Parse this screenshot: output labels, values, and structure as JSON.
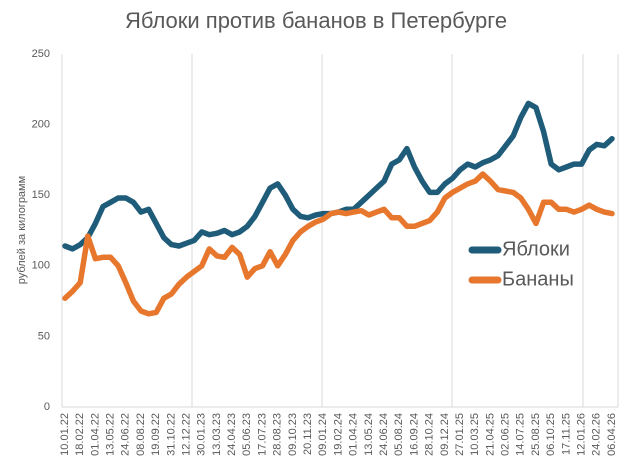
{
  "chart_data": {
    "type": "line",
    "title": "Яблоки против бананов в Петербурге",
    "y_label": "рублей за килограмм",
    "categories": [
      "10.01.22",
      null,
      "18.02.22",
      null,
      "01.04.22",
      null,
      "13.05.22",
      null,
      "24.06.22",
      null,
      "08.08.22",
      null,
      "19.09.22",
      null,
      "31.10.22",
      null,
      "12.12.22",
      null,
      "30.01.23",
      null,
      "13.03.23",
      null,
      "24.04.23",
      null,
      "05.06.23",
      null,
      "17.07.23",
      null,
      "28.08.23",
      null,
      "09.10.23",
      null,
      "20.11.23",
      null,
      "09.01.24",
      null,
      "19.02.24",
      null,
      "01.04.24",
      null,
      "13.05.24",
      null,
      "24.06.24",
      null,
      "05.08.24",
      null,
      "16.09.24",
      null,
      "28.10.24",
      null,
      "09.12.24",
      null,
      "27.01.25",
      null,
      "10.03.25",
      null,
      "21.04.25",
      null,
      "02.06.25",
      null,
      "14.07.25",
      null,
      "25.08.25",
      null,
      "06.10.25",
      null,
      "17.11.25",
      null,
      "12.01.26",
      null,
      "24.02.26",
      null,
      "06.04.26"
    ],
    "series": [
      {
        "name": "Яблоки",
        "color": "#1f5c7a",
        "values": [
          114,
          112,
          115,
          120,
          130,
          142,
          145,
          148,
          148,
          145,
          138,
          140,
          130,
          120,
          115,
          114,
          116,
          118,
          124,
          122,
          123,
          125,
          122,
          124,
          128,
          135,
          145,
          155,
          158,
          150,
          140,
          135,
          134,
          136,
          137,
          137,
          138,
          140,
          140,
          145,
          150,
          155,
          160,
          172,
          175,
          183,
          170,
          160,
          152,
          152,
          158,
          162,
          168,
          172,
          170,
          173,
          175,
          178,
          185,
          192,
          205,
          215,
          212,
          195,
          172,
          168,
          170,
          172,
          172,
          182,
          186,
          185,
          190
        ]
      },
      {
        "name": "Бананы",
        "color": "#e8772e",
        "values": [
          77,
          82,
          88,
          121,
          105,
          106,
          106,
          100,
          88,
          75,
          68,
          66,
          67,
          77,
          80,
          87,
          92,
          96,
          100,
          112,
          107,
          106,
          113,
          108,
          92,
          98,
          100,
          110,
          100,
          108,
          118,
          124,
          128,
          131,
          133,
          137,
          138,
          137,
          138,
          139,
          136,
          138,
          140,
          134,
          134,
          128,
          128,
          130,
          132,
          138,
          148,
          152,
          155,
          158,
          160,
          165,
          160,
          154,
          153,
          152,
          148,
          140,
          130,
          145,
          145,
          140,
          140,
          138,
          140,
          143,
          140,
          138,
          137
        ]
      }
    ],
    "ylim": [
      0,
      250
    ],
    "yticks": [
      0,
      50,
      100,
      150,
      200,
      250
    ]
  }
}
